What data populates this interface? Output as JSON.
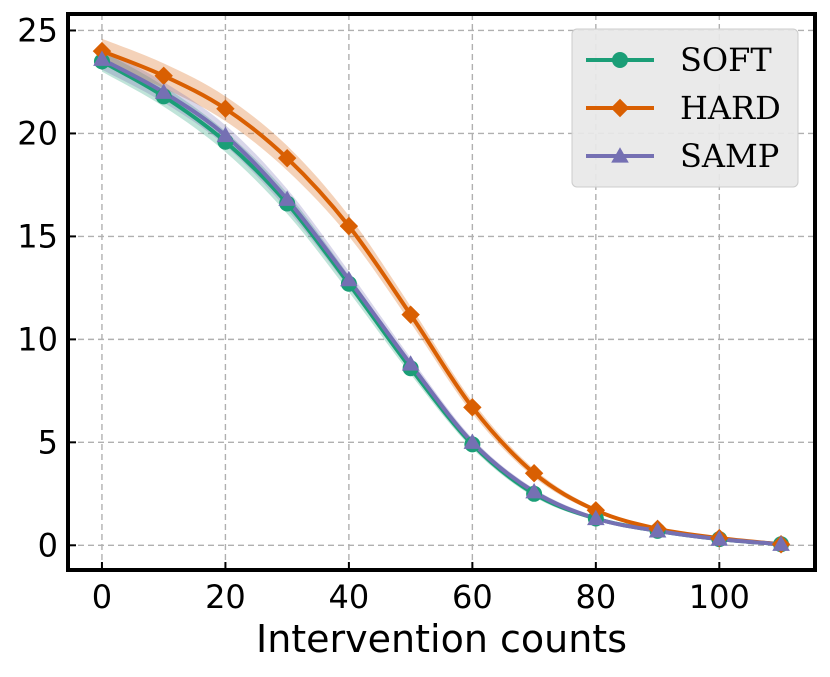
{
  "chart_data": {
    "type": "line",
    "title": "",
    "xlabel": "Intervention counts",
    "ylabel": "",
    "xlim": [
      -5.5,
      115.5
    ],
    "ylim": [
      -1.2,
      25.8
    ],
    "xticks": [
      0,
      20,
      40,
      60,
      80,
      100
    ],
    "yticks": [
      0,
      5,
      10,
      15,
      20,
      25
    ],
    "grid": true,
    "legend_position": "top-right",
    "series": [
      {
        "name": "SOFT",
        "color": "#1b9e77",
        "marker": "circle",
        "x": [
          0,
          10,
          20,
          30,
          40,
          50,
          60,
          70,
          80,
          90,
          100,
          110
        ],
        "y": [
          23.5,
          21.8,
          19.6,
          16.6,
          12.7,
          8.6,
          4.9,
          2.5,
          1.3,
          0.7,
          0.3,
          0.05
        ],
        "band": [
          0.5,
          0.5,
          0.5,
          0.5,
          0.4,
          0.3,
          0.2,
          0.15,
          0.1,
          0.05,
          0.05,
          0.02
        ]
      },
      {
        "name": "HARD",
        "color": "#d95f02",
        "marker": "diamond",
        "x": [
          0,
          10,
          20,
          30,
          40,
          50,
          60,
          70,
          80,
          90,
          100,
          110
        ],
        "y": [
          24.0,
          22.8,
          21.2,
          18.8,
          15.5,
          11.2,
          6.7,
          3.5,
          1.7,
          0.8,
          0.35,
          0.05
        ],
        "band": [
          0.6,
          0.6,
          0.6,
          0.6,
          0.5,
          0.4,
          0.3,
          0.2,
          0.1,
          0.05,
          0.05,
          0.02
        ]
      },
      {
        "name": "SAMP",
        "color": "#7570b3",
        "marker": "triangle",
        "x": [
          0,
          10,
          20,
          30,
          40,
          50,
          60,
          70,
          80,
          90,
          100,
          110
        ],
        "y": [
          23.6,
          22.0,
          19.9,
          16.8,
          12.9,
          8.8,
          5.0,
          2.6,
          1.3,
          0.7,
          0.3,
          0.05
        ],
        "band": [
          0.5,
          0.5,
          0.5,
          0.5,
          0.4,
          0.3,
          0.2,
          0.15,
          0.1,
          0.05,
          0.05,
          0.02
        ]
      }
    ]
  }
}
